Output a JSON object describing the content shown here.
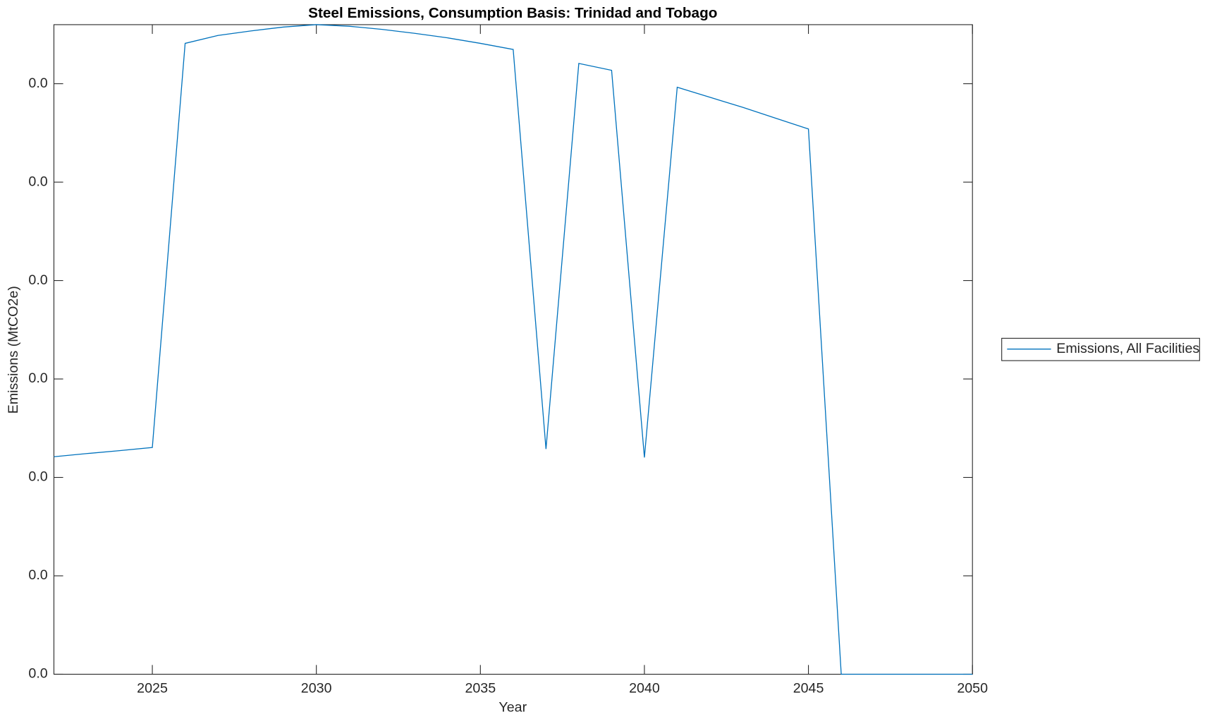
{
  "chart_data": {
    "type": "line",
    "title": "Steel Emissions, Consumption Basis: Trinidad and Tobago",
    "x_label": "Year",
    "y_label": "Emissions (MtCO2e)",
    "x": [
      2022,
      2023,
      2024,
      2025,
      2026,
      2027,
      2028,
      2029,
      2030,
      2031,
      2032,
      2033,
      2034,
      2035,
      2036,
      2037,
      2038,
      2039,
      2040,
      2041,
      2042,
      2043,
      2044,
      2045,
      2046,
      2047,
      2048,
      2049,
      2050
    ],
    "series": [
      {
        "name": "Emissions, All Facilities",
        "color": "#0072bd",
        "values": [
          0.01105,
          0.01121,
          0.01136,
          0.01152,
          0.03205,
          0.03245,
          0.03268,
          0.03288,
          0.033,
          0.03292,
          0.03276,
          0.03256,
          0.03233,
          0.03205,
          0.03174,
          0.01144,
          0.03103,
          0.03068,
          0.01101,
          0.02982,
          0.02931,
          0.0288,
          0.02825,
          0.0277,
          0,
          0,
          0,
          0,
          0
        ]
      }
    ],
    "xlim": [
      2022,
      2050
    ],
    "xticks": [
      2025,
      2030,
      2035,
      2040,
      2045,
      2050
    ],
    "ylim": [
      0,
      0.033
    ],
    "yticks": [
      {
        "value": 0,
        "label": "0.0"
      },
      {
        "value": 0.005,
        "label": "0.0"
      },
      {
        "value": 0.01,
        "label": "0.0"
      },
      {
        "value": 0.015,
        "label": "0.0"
      },
      {
        "value": 0.02,
        "label": "0.0"
      },
      {
        "value": 0.025,
        "label": "0.0"
      },
      {
        "value": 0.03,
        "label": "0.0"
      }
    ],
    "grid": false
  }
}
